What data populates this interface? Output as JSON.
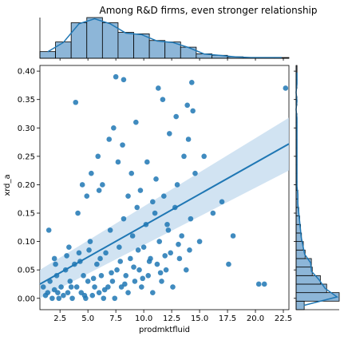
{
  "chart_data": {
    "type": "scatter",
    "title": "Among R&D firms, even stronger relationship",
    "xlabel": "prodmktfluid",
    "ylabel": "xrd_a",
    "xlim": [
      0.7,
      23.0
    ],
    "ylim": [
      -0.02,
      0.41
    ],
    "xticks": [
      2.5,
      5.0,
      7.5,
      10.0,
      12.5,
      15.0,
      17.5,
      20.0,
      22.5
    ],
    "xtick_labels": [
      "2.5",
      "5.0",
      "7.5",
      "10.0",
      "12.5",
      "15.0",
      "17.5",
      "20.0",
      "22.5"
    ],
    "yticks": [
      0.0,
      0.05,
      0.1,
      0.15,
      0.2,
      0.25,
      0.3,
      0.35,
      0.4
    ],
    "ytick_labels": [
      "0.00",
      "0.05",
      "0.10",
      "0.15",
      "0.20",
      "0.25",
      "0.30",
      "0.35",
      "0.40"
    ],
    "colors": {
      "points": "#1f77b4",
      "line": "#1f77b4",
      "band": "#c6dcef",
      "hist": "#8db6d8",
      "hist_edge": "#000000"
    },
    "regression": {
      "x": [
        0.7,
        23.0
      ],
      "y": [
        0.025,
        0.272
      ],
      "ci_lower": [
        0.0,
        0.225
      ],
      "ci_upper": [
        0.05,
        0.318
      ]
    },
    "points": [
      [
        1.0,
        0.02
      ],
      [
        1.2,
        0.005
      ],
      [
        1.4,
        0.01
      ],
      [
        1.6,
        0.03
      ],
      [
        1.8,
        0.0
      ],
      [
        2.0,
        0.015
      ],
      [
        2.2,
        0.04
      ],
      [
        2.4,
        0.0
      ],
      [
        2.6,
        0.02
      ],
      [
        2.8,
        0.005
      ],
      [
        3.0,
        0.05
      ],
      [
        3.2,
        0.01
      ],
      [
        3.4,
        0.03
      ],
      [
        3.6,
        0.0
      ],
      [
        3.8,
        0.06
      ],
      [
        4.0,
        0.02
      ],
      [
        4.2,
        0.08
      ],
      [
        4.4,
        0.01
      ],
      [
        4.6,
        0.04
      ],
      [
        4.8,
        0.0
      ],
      [
        5.0,
        0.03
      ],
      [
        5.2,
        0.1
      ],
      [
        5.4,
        0.005
      ],
      [
        5.6,
        0.02
      ],
      [
        5.8,
        0.06
      ],
      [
        6.0,
        0.01
      ],
      [
        6.2,
        0.04
      ],
      [
        6.4,
        0.0
      ],
      [
        6.6,
        0.08
      ],
      [
        6.8,
        0.02
      ],
      [
        7.0,
        0.12
      ],
      [
        7.2,
        0.03
      ],
      [
        7.4,
        0.0
      ],
      [
        7.6,
        0.05
      ],
      [
        7.8,
        0.09
      ],
      [
        8.0,
        0.02
      ],
      [
        8.2,
        0.14
      ],
      [
        8.4,
        0.04
      ],
      [
        8.6,
        0.01
      ],
      [
        8.8,
        0.07
      ],
      [
        9.0,
        0.11
      ],
      [
        9.2,
        0.03
      ],
      [
        9.4,
        0.16
      ],
      [
        9.6,
        0.05
      ],
      [
        9.8,
        0.02
      ],
      [
        10.0,
        0.09
      ],
      [
        10.2,
        0.13
      ],
      [
        10.4,
        0.04
      ],
      [
        10.6,
        0.07
      ],
      [
        10.8,
        0.01
      ],
      [
        11.0,
        0.15
      ],
      [
        11.2,
        0.06
      ],
      [
        11.4,
        0.1
      ],
      [
        11.6,
        0.03
      ],
      [
        11.8,
        0.18
      ],
      [
        12.0,
        0.05
      ],
      [
        12.2,
        0.12
      ],
      [
        12.4,
        0.08
      ],
      [
        12.6,
        0.02
      ],
      [
        12.8,
        0.16
      ],
      [
        13.0,
        0.2
      ],
      [
        13.2,
        0.07
      ],
      [
        13.4,
        0.11
      ],
      [
        13.6,
        0.25
      ],
      [
        13.8,
        0.05
      ],
      [
        14.0,
        0.28
      ],
      [
        14.2,
        0.14
      ],
      [
        14.4,
        0.33
      ],
      [
        14.6,
        0.22
      ],
      [
        15.0,
        0.1
      ],
      [
        1.5,
        0.12
      ],
      [
        2.1,
        0.06
      ],
      [
        3.3,
        0.09
      ],
      [
        4.1,
        0.15
      ],
      [
        4.9,
        0.18
      ],
      [
        5.3,
        0.22
      ],
      [
        5.9,
        0.25
      ],
      [
        6.3,
        0.2
      ],
      [
        6.9,
        0.28
      ],
      [
        7.3,
        0.3
      ],
      [
        7.7,
        0.24
      ],
      [
        8.1,
        0.27
      ],
      [
        8.9,
        0.22
      ],
      [
        9.3,
        0.31
      ],
      [
        9.7,
        0.19
      ],
      [
        10.3,
        0.24
      ],
      [
        11.1,
        0.21
      ],
      [
        11.7,
        0.35
      ],
      [
        12.3,
        0.29
      ],
      [
        12.9,
        0.32
      ],
      [
        13.9,
        0.34
      ],
      [
        14.3,
        0.38
      ],
      [
        15.4,
        0.25
      ],
      [
        16.2,
        0.15
      ],
      [
        17.0,
        0.17
      ],
      [
        17.6,
        0.06
      ],
      [
        18.0,
        0.11
      ],
      [
        20.3,
        0.025
      ],
      [
        20.8,
        0.025
      ],
      [
        22.7,
        0.37
      ],
      [
        3.9,
        0.345
      ],
      [
        7.5,
        0.39
      ],
      [
        8.2,
        0.385
      ],
      [
        11.3,
        0.37
      ],
      [
        4.5,
        0.2
      ],
      [
        6.0,
        0.19
      ],
      [
        8.6,
        0.18
      ],
      [
        10.8,
        0.17
      ],
      [
        12.1,
        0.13
      ],
      [
        2.3,
        0.01
      ],
      [
        3.5,
        0.02
      ],
      [
        4.7,
        0.005
      ],
      [
        5.5,
        0.035
      ],
      [
        6.5,
        0.015
      ],
      [
        7.1,
        0.045
      ],
      [
        8.3,
        0.025
      ],
      [
        9.1,
        0.055
      ],
      [
        9.9,
        0.035
      ],
      [
        10.5,
        0.065
      ],
      [
        11.5,
        0.045
      ],
      [
        2.0,
        0.07
      ],
      [
        3.1,
        0.075
      ],
      [
        4.3,
        0.065
      ],
      [
        5.1,
        0.085
      ],
      [
        6.1,
        0.07
      ],
      [
        7.9,
        0.065
      ],
      [
        9.5,
        0.085
      ],
      [
        11.9,
        0.075
      ],
      [
        13.1,
        0.095
      ],
      [
        14.1,
        0.085
      ]
    ],
    "top_hist": {
      "bin_edges": [
        0.7,
        2.1,
        3.5,
        4.9,
        6.3,
        7.7,
        9.1,
        10.5,
        11.9,
        13.3,
        14.7,
        16.1,
        17.5,
        18.9,
        20.3,
        21.7,
        23.0
      ],
      "counts": [
        9,
        22,
        48,
        55,
        48,
        35,
        33,
        24,
        22,
        15,
        6,
        4,
        2,
        1,
        1,
        1
      ]
    },
    "right_hist": {
      "bin_edges": [
        -0.02,
        -0.005,
        0.01,
        0.025,
        0.04,
        0.055,
        0.07,
        0.085,
        0.1,
        0.115,
        0.13,
        0.145,
        0.16,
        0.175,
        0.19,
        0.205,
        0.22,
        0.235,
        0.25,
        0.265,
        0.28,
        0.295,
        0.31,
        0.325,
        0.34,
        0.355,
        0.37,
        0.385,
        0.41
      ],
      "counts": [
        9,
        48,
        34,
        27,
        18,
        17,
        10,
        8,
        6,
        5,
        4,
        3,
        2,
        2,
        1,
        1,
        1,
        1,
        1,
        1,
        1,
        1,
        1,
        0,
        1,
        0,
        1,
        1
      ]
    }
  }
}
